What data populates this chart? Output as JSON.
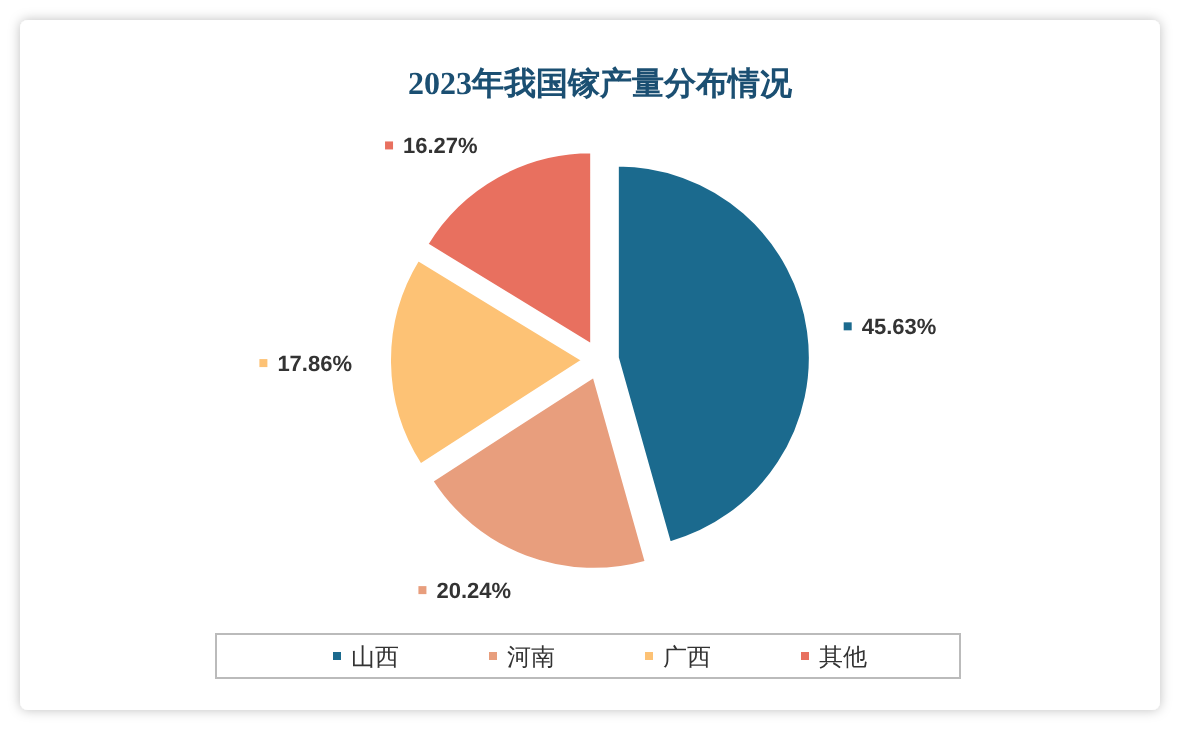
{
  "chart_data": {
    "type": "pie",
    "title": "2023年我国镓产量分布情况",
    "categories": [
      "山西",
      "河南",
      "广西",
      "其他"
    ],
    "values": [
      45.63,
      20.24,
      17.86,
      16.27
    ],
    "value_labels": [
      "45.63%",
      "20.24%",
      "17.86%",
      "16.27%"
    ],
    "colors": [
      "#1b6a8e",
      "#e89e7d",
      "#fdc275",
      "#e8705f"
    ],
    "legend": "bottom"
  }
}
